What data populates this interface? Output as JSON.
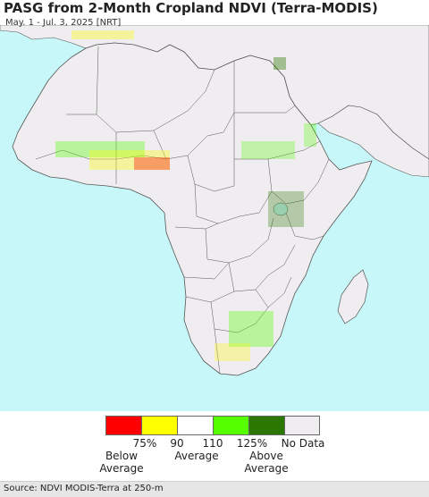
{
  "header": {
    "title": "PASG from 2-Month Cropland NDVI (Terra-MODIS)",
    "subtitle": "May. 1 - Jul. 3, 2025 [NRT]"
  },
  "map": {
    "ocean_color": "#c8f7f9",
    "land_color": "#efedef",
    "border_color": "#555555"
  },
  "legend": {
    "colors": [
      "#ff0000",
      "#ffff00",
      "#ffffff",
      "#55ff00",
      "#2a7800",
      "#efedef"
    ],
    "tick_labels": [
      "75%",
      "90",
      "110",
      "125%",
      "No Data"
    ],
    "group_labels": {
      "below": "Below\nAverage",
      "average": "Average",
      "above": "Above\nAverage"
    }
  },
  "footer": {
    "source": "Source: NDVI MODIS-Terra at 250-m"
  }
}
